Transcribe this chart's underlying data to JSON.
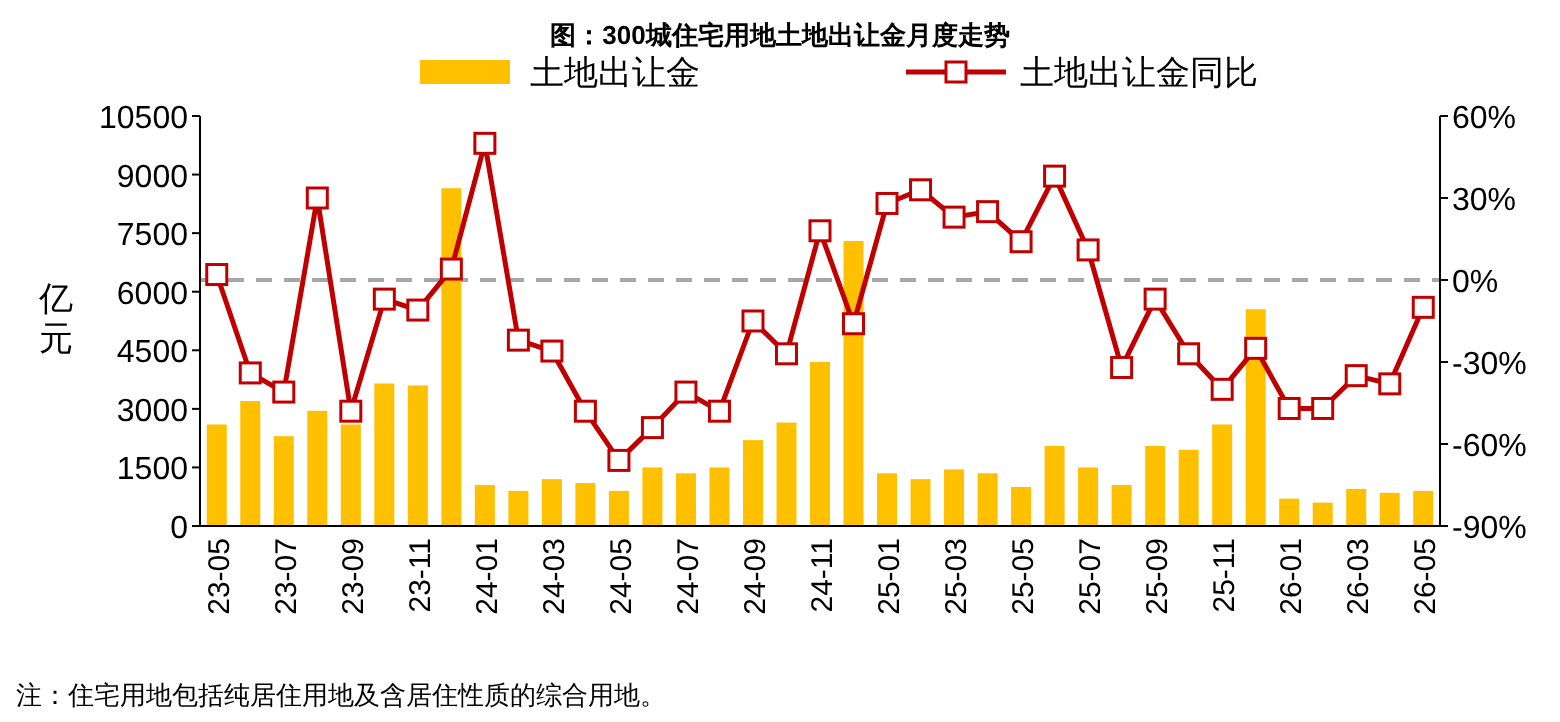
{
  "chart_data": {
    "type": "bar",
    "title": "图：300城住宅用地土地出让金月度走势",
    "ylabel": "亿元",
    "categories": [
      "23-05",
      null,
      "23-07",
      null,
      "23-09",
      null,
      "23-11",
      null,
      "24-01",
      null,
      "24-03",
      null,
      "24-05",
      null,
      "24-07",
      null,
      "24-09",
      null,
      "24-11",
      null,
      "25-01",
      null,
      "25-03",
      null,
      "25-05",
      null,
      "25-07",
      null,
      "25-09",
      null,
      "25-11",
      null,
      "26-01",
      null,
      "26-03",
      null,
      "26-05"
    ],
    "series": [
      {
        "name": "土地出让金",
        "color": "#ffc000",
        "values": [
          2600,
          3200,
          2300,
          2950,
          2600,
          3650,
          3600,
          8650,
          1050,
          900,
          1200,
          1100,
          900,
          1500,
          1350,
          1500,
          2200,
          2650,
          4200,
          7300,
          1350,
          1200,
          1450,
          1350,
          1000,
          2050,
          1500,
          1050,
          2050,
          1950,
          2600,
          5550,
          700,
          600,
          950,
          850,
          900
        ]
      },
      {
        "name": "土地出让金同比",
        "type": "line",
        "axis": "y2",
        "color": "#c00000",
        "values": [
          2,
          -34,
          -41,
          30,
          -48,
          -7,
          -11,
          4,
          50,
          -22,
          -26,
          -48,
          -66,
          -54,
          -41,
          -48,
          -15,
          -27,
          18,
          -16,
          28,
          33,
          23,
          25,
          14,
          38,
          11,
          -32,
          -7,
          -27,
          -40,
          -25,
          -47,
          -47,
          -35,
          -38,
          -10
        ]
      }
    ],
    "ylim": [
      0,
      10500
    ],
    "yticks": [
      0,
      1500,
      3000,
      4500,
      6000,
      7500,
      9000,
      10500
    ],
    "y2lim": [
      -90,
      60
    ],
    "y2ticks": [
      {
        "value": -90,
        "label": "-90%"
      },
      {
        "value": -60,
        "label": "-60%"
      },
      {
        "value": -30,
        "label": "-30%"
      },
      {
        "value": 0,
        "label": "0%"
      },
      {
        "value": 30,
        "label": "30%"
      },
      {
        "value": 60,
        "label": "60%"
      }
    ],
    "ref_lines": [
      {
        "axis": "y2",
        "value": 0,
        "color": "#a6a6a6",
        "line_style": "dashed"
      }
    ],
    "marker": "square",
    "legend": "top",
    "grid": false,
    "annotations": [
      "注：住宅用地包括纯居住用地及含居住性质的综合用地。"
    ]
  }
}
